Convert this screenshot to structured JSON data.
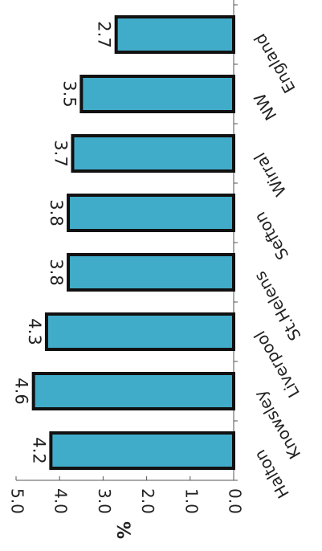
{
  "chart_data": {
    "type": "bar",
    "orientation": "horizontal",
    "rotated_180": true,
    "categories": [
      "Halton",
      "Knowsley",
      "Liverpool",
      "St.Helens",
      "Sefton",
      "Wirral",
      "NW",
      "England"
    ],
    "values": [
      4.2,
      4.6,
      4.3,
      3.8,
      3.8,
      3.7,
      3.5,
      2.7
    ],
    "value_labels": [
      "4.2",
      "4.6",
      "4.3",
      "3.8",
      "3.8",
      "3.7",
      "3.5",
      "2.7"
    ],
    "ticks": [
      "0.0",
      "1.0",
      "2.0",
      "3.0",
      "4.0",
      "5.0"
    ],
    "tick_values": [
      0,
      1,
      2,
      3,
      4,
      5
    ],
    "xlabel": "%",
    "ylabel": "",
    "xlim": [
      0,
      5
    ],
    "bar_color": "#41acc9",
    "bar_edge_color": "#111111",
    "grid": false
  }
}
